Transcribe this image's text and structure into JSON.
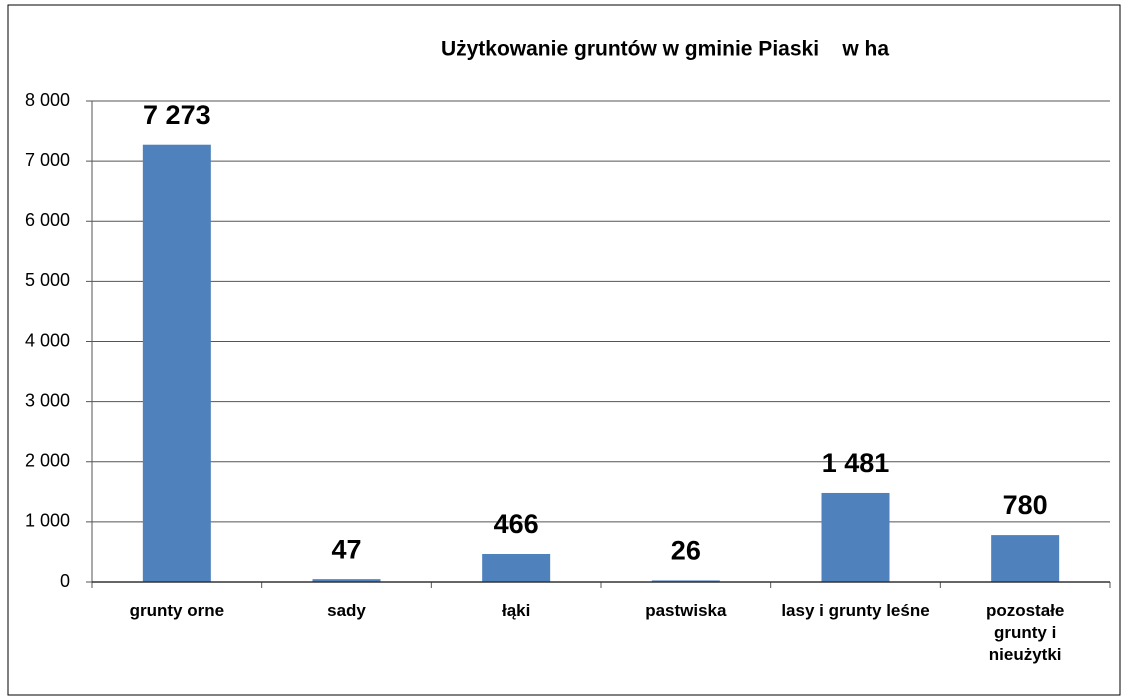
{
  "chart_data": {
    "type": "bar",
    "title": "Użytkowanie gruntów w gminie Piaski    w ha",
    "categories": [
      "grunty orne",
      "sady",
      "łąki",
      "pastwiska",
      "lasy i grunty leśne",
      "pozostałe grunty i nieużytki"
    ],
    "values": [
      7273,
      47,
      466,
      26,
      1481,
      780
    ],
    "value_labels": [
      "7 273",
      "47",
      "466",
      "26",
      "1 481",
      "780"
    ],
    "color": "#4f81bd",
    "ylim": [
      0,
      8000
    ],
    "yticks": [
      0,
      {
        "value": 1000,
        "label": "1 000"
      },
      {
        "value": 2000,
        "label": "2 000"
      },
      {
        "value": 3000,
        "label": "3 000"
      },
      {
        "value": 4000,
        "label": "4 000"
      },
      {
        "value": 5000,
        "label": "5 000"
      },
      {
        "value": 6000,
        "label": "6 000"
      },
      {
        "value": 7000,
        "label": "7 000"
      },
      {
        "value": 8000,
        "label": "8 000"
      }
    ],
    "grid": true
  }
}
